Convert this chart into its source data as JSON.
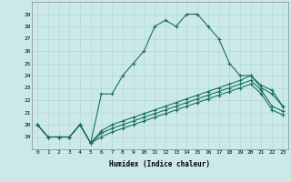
{
  "title": "",
  "xlabel": "Humidex (Indice chaleur)",
  "xlim": [
    -0.5,
    23.5
  ],
  "ylim": [
    18,
    30
  ],
  "yticks": [
    19,
    20,
    21,
    22,
    23,
    24,
    25,
    26,
    27,
    28,
    29
  ],
  "xticks": [
    0,
    1,
    2,
    3,
    4,
    5,
    6,
    7,
    8,
    9,
    10,
    11,
    12,
    13,
    14,
    15,
    16,
    17,
    18,
    19,
    20,
    21,
    22,
    23
  ],
  "bg_color": "#cce9e9",
  "grid_color": "#aad4d4",
  "line_color": "#1a7060",
  "main_y": [
    20,
    19,
    19,
    19,
    20,
    18.5,
    22.5,
    22.5,
    24,
    25,
    26,
    28,
    28.5,
    28,
    29,
    29,
    28,
    27,
    25,
    24,
    24,
    23,
    22.5,
    21.5
  ],
  "line2_y": [
    20,
    19,
    19,
    19,
    20,
    18.5,
    19.5,
    20.0,
    20.3,
    20.6,
    20.9,
    21.2,
    21.5,
    21.8,
    22.1,
    22.4,
    22.7,
    23.0,
    23.3,
    23.6,
    24.0,
    23.2,
    22.8,
    21.5
  ],
  "line3_y": [
    20,
    19,
    19,
    19,
    20,
    18.5,
    19.3,
    19.7,
    20.0,
    20.3,
    20.6,
    20.9,
    21.2,
    21.5,
    21.8,
    22.1,
    22.4,
    22.7,
    23.0,
    23.3,
    23.6,
    22.8,
    21.5,
    21.1
  ],
  "line4_y": [
    20,
    19,
    19,
    19,
    20,
    18.5,
    19.0,
    19.4,
    19.7,
    20.0,
    20.3,
    20.6,
    20.9,
    21.2,
    21.5,
    21.8,
    22.1,
    22.4,
    22.7,
    23.0,
    23.3,
    22.5,
    21.2,
    20.8
  ]
}
